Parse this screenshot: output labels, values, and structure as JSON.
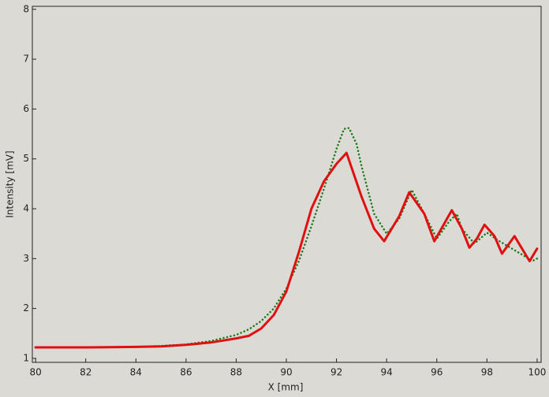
{
  "chart_data": {
    "type": "line",
    "xlabel": "X [mm]",
    "ylabel": "Intensity [mV]",
    "xlim": [
      79.87,
      100.16
    ],
    "ylim": [
      0.92,
      8.06
    ],
    "xticks": [
      80,
      82,
      84,
      86,
      88,
      90,
      92,
      94,
      96,
      98,
      100
    ],
    "yticks": [
      1,
      2,
      3,
      4,
      5,
      6,
      7,
      8
    ],
    "series": [
      {
        "color": "#1a7a1a",
        "style": "dotted",
        "x": [
          80,
          82,
          84,
          85,
          86,
          87,
          88,
          88.5,
          89,
          89.5,
          90,
          90.5,
          91,
          91.5,
          92,
          92.3,
          92.5,
          92.8,
          93,
          93.5,
          94,
          94.5,
          95,
          95.5,
          96,
          96.5,
          96.8,
          97,
          97.5,
          98,
          98.5,
          99,
          99.5,
          99.8,
          100
        ],
        "values": [
          1.22,
          1.22,
          1.23,
          1.25,
          1.28,
          1.35,
          1.47,
          1.58,
          1.75,
          2.0,
          2.4,
          2.95,
          3.65,
          4.4,
          5.2,
          5.6,
          5.62,
          5.3,
          4.85,
          3.9,
          3.5,
          3.8,
          4.38,
          3.9,
          3.4,
          3.75,
          3.9,
          3.6,
          3.3,
          3.52,
          3.35,
          3.2,
          3.05,
          2.95,
          3.0
        ]
      },
      {
        "color": "#e01010",
        "style": "solid",
        "x": [
          80,
          82,
          84,
          85,
          86,
          87,
          88,
          88.5,
          89,
          89.5,
          90,
          90.5,
          91,
          91.5,
          92,
          92.4,
          93,
          93.5,
          93.9,
          94.5,
          94.9,
          95.5,
          95.9,
          96.6,
          97,
          97.3,
          97.6,
          97.9,
          98.3,
          98.6,
          99.1,
          99.4,
          99.7,
          100
        ],
        "values": [
          1.22,
          1.22,
          1.23,
          1.24,
          1.27,
          1.32,
          1.4,
          1.45,
          1.6,
          1.87,
          2.34,
          3.13,
          4.0,
          4.55,
          4.9,
          5.12,
          4.24,
          3.6,
          3.35,
          3.85,
          4.33,
          3.9,
          3.35,
          3.97,
          3.6,
          3.22,
          3.4,
          3.68,
          3.45,
          3.1,
          3.45,
          3.2,
          2.95,
          3.2
        ]
      }
    ]
  }
}
